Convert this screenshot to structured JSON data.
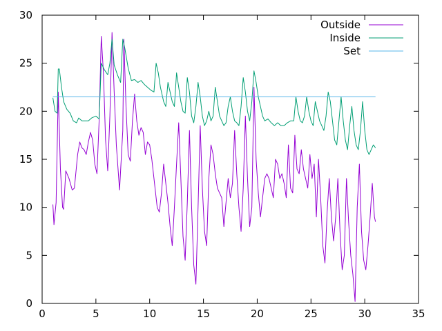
{
  "chart_data": {
    "type": "line",
    "title": "",
    "xlabel": "",
    "ylabel": "",
    "xlim": [
      0,
      35
    ],
    "ylim": [
      0,
      30
    ],
    "x_ticks": [
      0,
      5,
      10,
      15,
      20,
      25,
      30,
      35
    ],
    "y_ticks": [
      0,
      5,
      10,
      15,
      20,
      25,
      30
    ],
    "grid": false,
    "legend_position": "top-right",
    "series": [
      {
        "name": "Outside",
        "color": "#9400d3",
        "points": [
          [
            1.0,
            10.3
          ],
          [
            1.1,
            8.2
          ],
          [
            1.3,
            10.5
          ],
          [
            1.5,
            22.0
          ],
          [
            1.7,
            14.0
          ],
          [
            1.9,
            10.0
          ],
          [
            2.0,
            9.8
          ],
          [
            2.2,
            13.8
          ],
          [
            2.5,
            13.0
          ],
          [
            2.8,
            11.8
          ],
          [
            3.0,
            12.0
          ],
          [
            3.3,
            15.5
          ],
          [
            3.5,
            16.8
          ],
          [
            3.7,
            16.2
          ],
          [
            3.9,
            16.0
          ],
          [
            4.1,
            15.5
          ],
          [
            4.3,
            16.8
          ],
          [
            4.5,
            17.8
          ],
          [
            4.7,
            17.0
          ],
          [
            4.9,
            14.5
          ],
          [
            5.1,
            13.5
          ],
          [
            5.3,
            19.0
          ],
          [
            5.5,
            27.8
          ],
          [
            5.7,
            24.0
          ],
          [
            5.9,
            17.0
          ],
          [
            6.1,
            13.8
          ],
          [
            6.3,
            19.5
          ],
          [
            6.5,
            28.2
          ],
          [
            6.7,
            22.0
          ],
          [
            6.9,
            16.5
          ],
          [
            7.2,
            11.8
          ],
          [
            7.5,
            18.0
          ],
          [
            7.6,
            27.5
          ],
          [
            7.8,
            20.5
          ],
          [
            8.0,
            15.5
          ],
          [
            8.2,
            14.8
          ],
          [
            8.4,
            19.0
          ],
          [
            8.6,
            21.8
          ],
          [
            8.8,
            19.0
          ],
          [
            9.0,
            17.5
          ],
          [
            9.2,
            18.3
          ],
          [
            9.4,
            17.8
          ],
          [
            9.6,
            15.5
          ],
          [
            9.8,
            16.8
          ],
          [
            10.0,
            16.5
          ],
          [
            10.2,
            15.0
          ],
          [
            10.5,
            12.0
          ],
          [
            10.7,
            10.0
          ],
          [
            10.9,
            9.5
          ],
          [
            11.1,
            11.5
          ],
          [
            11.3,
            14.5
          ],
          [
            11.5,
            12.5
          ],
          [
            11.7,
            10.5
          ],
          [
            11.9,
            8.0
          ],
          [
            12.1,
            6.0
          ],
          [
            12.3,
            10.0
          ],
          [
            12.5,
            14.5
          ],
          [
            12.7,
            18.8
          ],
          [
            12.9,
            13.0
          ],
          [
            13.1,
            7.0
          ],
          [
            13.3,
            4.5
          ],
          [
            13.5,
            10.5
          ],
          [
            13.7,
            18.0
          ],
          [
            13.9,
            10.0
          ],
          [
            14.1,
            4.0
          ],
          [
            14.3,
            2.0
          ],
          [
            14.5,
            10.0
          ],
          [
            14.7,
            18.5
          ],
          [
            14.9,
            12.0
          ],
          [
            15.1,
            7.5
          ],
          [
            15.3,
            6.0
          ],
          [
            15.5,
            13.0
          ],
          [
            15.7,
            16.5
          ],
          [
            15.9,
            15.5
          ],
          [
            16.1,
            13.5
          ],
          [
            16.3,
            12.0
          ],
          [
            16.5,
            11.5
          ],
          [
            16.7,
            11.0
          ],
          [
            16.9,
            8.0
          ],
          [
            17.1,
            10.5
          ],
          [
            17.3,
            13.0
          ],
          [
            17.5,
            11.0
          ],
          [
            17.7,
            12.5
          ],
          [
            17.9,
            18.0
          ],
          [
            18.1,
            13.5
          ],
          [
            18.3,
            10.0
          ],
          [
            18.5,
            7.5
          ],
          [
            18.7,
            12.0
          ],
          [
            18.9,
            19.5
          ],
          [
            19.1,
            13.0
          ],
          [
            19.3,
            8.0
          ],
          [
            19.5,
            10.0
          ],
          [
            19.7,
            22.5
          ],
          [
            19.9,
            15.0
          ],
          [
            20.1,
            11.5
          ],
          [
            20.3,
            9.0
          ],
          [
            20.5,
            11.0
          ],
          [
            20.7,
            13.0
          ],
          [
            20.9,
            13.5
          ],
          [
            21.1,
            13.0
          ],
          [
            21.3,
            12.0
          ],
          [
            21.5,
            11.0
          ],
          [
            21.7,
            15.0
          ],
          [
            21.9,
            14.5
          ],
          [
            22.1,
            13.0
          ],
          [
            22.3,
            13.5
          ],
          [
            22.5,
            12.5
          ],
          [
            22.7,
            11.0
          ],
          [
            22.9,
            16.5
          ],
          [
            23.1,
            12.0
          ],
          [
            23.3,
            11.5
          ],
          [
            23.5,
            17.5
          ],
          [
            23.7,
            14.0
          ],
          [
            23.9,
            13.5
          ],
          [
            24.1,
            16.0
          ],
          [
            24.3,
            14.0
          ],
          [
            24.5,
            13.0
          ],
          [
            24.7,
            12.0
          ],
          [
            24.9,
            15.5
          ],
          [
            25.1,
            13.0
          ],
          [
            25.3,
            14.5
          ],
          [
            25.5,
            9.0
          ],
          [
            25.7,
            15.0
          ],
          [
            25.9,
            11.0
          ],
          [
            26.1,
            6.0
          ],
          [
            26.3,
            4.2
          ],
          [
            26.5,
            9.5
          ],
          [
            26.7,
            13.0
          ],
          [
            26.9,
            9.0
          ],
          [
            27.1,
            6.5
          ],
          [
            27.3,
            9.0
          ],
          [
            27.5,
            13.0
          ],
          [
            27.7,
            7.5
          ],
          [
            27.9,
            3.5
          ],
          [
            28.1,
            5.0
          ],
          [
            28.3,
            13.0
          ],
          [
            28.5,
            8.5
          ],
          [
            28.7,
            5.0
          ],
          [
            28.9,
            3.0
          ],
          [
            29.1,
            0.2
          ],
          [
            29.3,
            10.0
          ],
          [
            29.5,
            14.5
          ],
          [
            29.7,
            7.5
          ],
          [
            29.9,
            4.5
          ],
          [
            30.1,
            3.5
          ],
          [
            30.3,
            6.0
          ],
          [
            30.5,
            9.0
          ],
          [
            30.7,
            12.5
          ],
          [
            30.9,
            9.0
          ],
          [
            31.0,
            8.5
          ]
        ]
      },
      {
        "name": "Inside",
        "color": "#009e73",
        "points": [
          [
            1.0,
            21.4
          ],
          [
            1.2,
            20.0
          ],
          [
            1.4,
            19.8
          ],
          [
            1.5,
            24.4
          ],
          [
            1.6,
            24.4
          ],
          [
            1.8,
            22.5
          ],
          [
            2.0,
            21.0
          ],
          [
            2.3,
            20.2
          ],
          [
            2.6,
            19.8
          ],
          [
            2.9,
            19.0
          ],
          [
            3.2,
            18.8
          ],
          [
            3.4,
            19.3
          ],
          [
            3.7,
            19.0
          ],
          [
            4.0,
            19.0
          ],
          [
            4.3,
            19.0
          ],
          [
            4.6,
            19.3
          ],
          [
            5.0,
            19.5
          ],
          [
            5.3,
            19.2
          ],
          [
            5.5,
            25.0
          ],
          [
            5.8,
            24.3
          ],
          [
            6.1,
            23.8
          ],
          [
            6.3,
            25.0
          ],
          [
            6.5,
            27.5
          ],
          [
            6.7,
            24.8
          ],
          [
            7.0,
            23.8
          ],
          [
            7.3,
            23.0
          ],
          [
            7.5,
            27.5
          ],
          [
            7.7,
            26.5
          ],
          [
            8.0,
            24.5
          ],
          [
            8.3,
            23.2
          ],
          [
            8.6,
            23.3
          ],
          [
            8.9,
            23.0
          ],
          [
            9.2,
            23.2
          ],
          [
            9.5,
            22.8
          ],
          [
            9.8,
            22.5
          ],
          [
            10.1,
            22.2
          ],
          [
            10.4,
            22.0
          ],
          [
            10.6,
            25.0
          ],
          [
            10.8,
            24.0
          ],
          [
            11.0,
            22.5
          ],
          [
            11.3,
            21.0
          ],
          [
            11.5,
            20.5
          ],
          [
            11.7,
            23.0
          ],
          [
            11.9,
            22.0
          ],
          [
            12.1,
            21.0
          ],
          [
            12.3,
            20.5
          ],
          [
            12.5,
            24.0
          ],
          [
            12.7,
            22.5
          ],
          [
            12.9,
            21.0
          ],
          [
            13.1,
            20.0
          ],
          [
            13.3,
            19.8
          ],
          [
            13.5,
            23.5
          ],
          [
            13.7,
            22.0
          ],
          [
            13.9,
            19.5
          ],
          [
            14.1,
            18.8
          ],
          [
            14.3,
            20.5
          ],
          [
            14.5,
            23.0
          ],
          [
            14.7,
            21.5
          ],
          [
            14.9,
            19.5
          ],
          [
            15.1,
            18.5
          ],
          [
            15.3,
            19.0
          ],
          [
            15.5,
            20.0
          ],
          [
            15.7,
            19.0
          ],
          [
            15.9,
            19.5
          ],
          [
            16.1,
            22.5
          ],
          [
            16.3,
            21.0
          ],
          [
            16.5,
            19.5
          ],
          [
            16.7,
            19.0
          ],
          [
            16.9,
            18.5
          ],
          [
            17.1,
            18.8
          ],
          [
            17.3,
            20.5
          ],
          [
            17.5,
            21.5
          ],
          [
            17.7,
            20.0
          ],
          [
            17.9,
            19.0
          ],
          [
            18.1,
            18.8
          ],
          [
            18.3,
            18.5
          ],
          [
            18.5,
            20.5
          ],
          [
            18.7,
            23.5
          ],
          [
            18.9,
            22.0
          ],
          [
            19.1,
            20.0
          ],
          [
            19.3,
            19.0
          ],
          [
            19.5,
            21.0
          ],
          [
            19.7,
            24.2
          ],
          [
            19.9,
            23.0
          ],
          [
            20.1,
            21.5
          ],
          [
            20.3,
            20.5
          ],
          [
            20.5,
            19.5
          ],
          [
            20.7,
            19.0
          ],
          [
            21.0,
            19.2
          ],
          [
            21.3,
            18.8
          ],
          [
            21.6,
            18.5
          ],
          [
            21.9,
            18.8
          ],
          [
            22.2,
            18.5
          ],
          [
            22.5,
            18.5
          ],
          [
            22.8,
            18.8
          ],
          [
            23.1,
            19.0
          ],
          [
            23.4,
            19.0
          ],
          [
            23.6,
            21.5
          ],
          [
            23.8,
            20.0
          ],
          [
            24.0,
            19.0
          ],
          [
            24.2,
            18.8
          ],
          [
            24.4,
            19.5
          ],
          [
            24.6,
            21.5
          ],
          [
            24.8,
            20.0
          ],
          [
            25.0,
            19.0
          ],
          [
            25.2,
            18.5
          ],
          [
            25.4,
            21.0
          ],
          [
            25.6,
            20.0
          ],
          [
            25.8,
            19.0
          ],
          [
            26.0,
            18.5
          ],
          [
            26.2,
            18.0
          ],
          [
            26.4,
            19.5
          ],
          [
            26.6,
            22.0
          ],
          [
            26.8,
            21.0
          ],
          [
            27.0,
            19.0
          ],
          [
            27.2,
            17.0
          ],
          [
            27.4,
            16.5
          ],
          [
            27.6,
            19.0
          ],
          [
            27.8,
            21.5
          ],
          [
            28.0,
            19.0
          ],
          [
            28.2,
            17.0
          ],
          [
            28.4,
            16.0
          ],
          [
            28.6,
            18.5
          ],
          [
            28.8,
            20.5
          ],
          [
            29.0,
            18.0
          ],
          [
            29.2,
            16.5
          ],
          [
            29.4,
            16.0
          ],
          [
            29.6,
            18.0
          ],
          [
            29.8,
            21.0
          ],
          [
            30.0,
            18.0
          ],
          [
            30.2,
            16.0
          ],
          [
            30.4,
            15.5
          ],
          [
            30.6,
            16.0
          ],
          [
            30.8,
            16.5
          ],
          [
            31.0,
            16.2
          ]
        ]
      },
      {
        "name": "Set",
        "color": "#56b4e9",
        "points": [
          [
            1.0,
            21.5
          ],
          [
            31.0,
            21.5
          ]
        ]
      }
    ]
  }
}
